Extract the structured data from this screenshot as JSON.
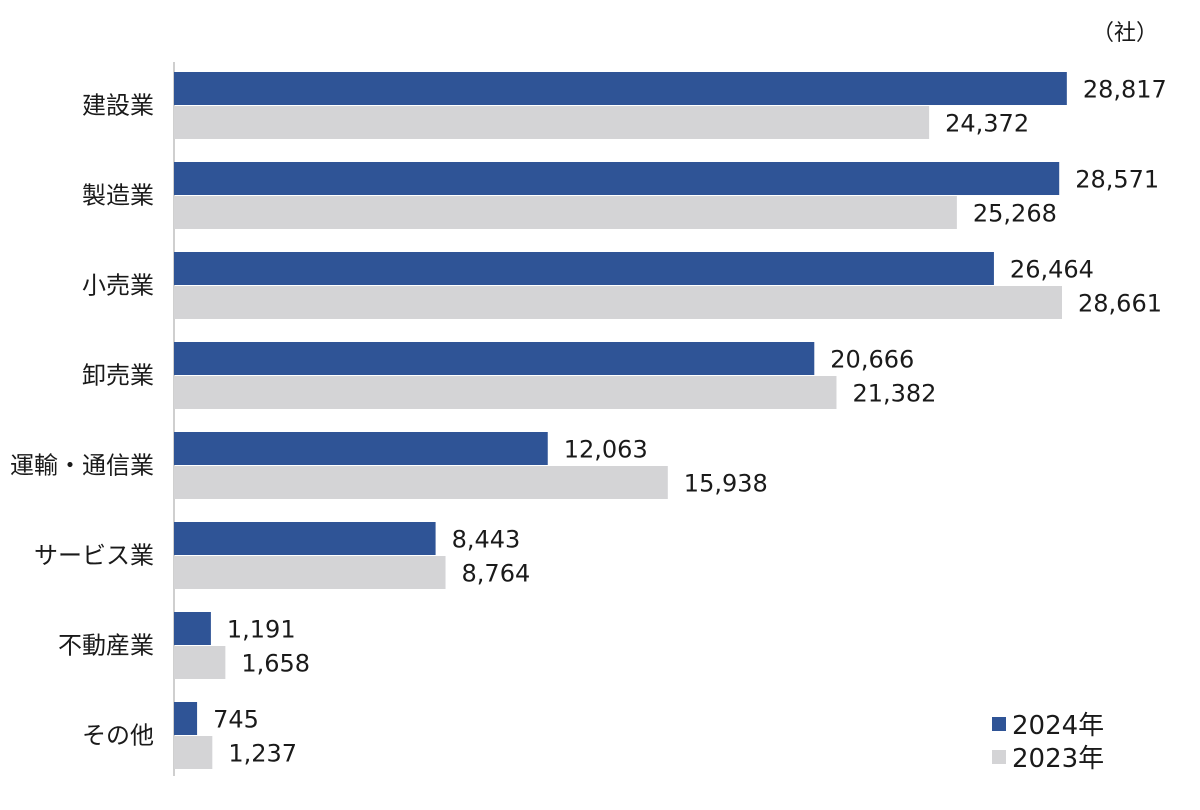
{
  "chart_data": {
    "type": "bar",
    "orientation": "horizontal",
    "unit": "（社）",
    "categories": [
      "建設業",
      "製造業",
      "小売業",
      "卸売業",
      "運輸・通信業",
      "サービス業",
      "不動産業",
      "その他"
    ],
    "series": [
      {
        "name": "2024年",
        "color": "#2f5496",
        "values": [
          28817,
          28571,
          26464,
          20666,
          12063,
          8443,
          1191,
          745
        ],
        "labels": [
          "28,817",
          "28,571",
          "26,464",
          "20,666",
          "12,063",
          "8,443",
          "1,191",
          "745"
        ]
      },
      {
        "name": "2023年",
        "color": "#d4d4d6",
        "values": [
          24372,
          25268,
          28661,
          21382,
          15938,
          8764,
          1658,
          1237
        ],
        "labels": [
          "24,372",
          "25,268",
          "28,661",
          "21,382",
          "15,938",
          "8,764",
          "1,658",
          "1,237"
        ]
      }
    ],
    "xlim": [
      0,
      28661
    ],
    "legend_position": "bottom-right",
    "grid": false
  }
}
